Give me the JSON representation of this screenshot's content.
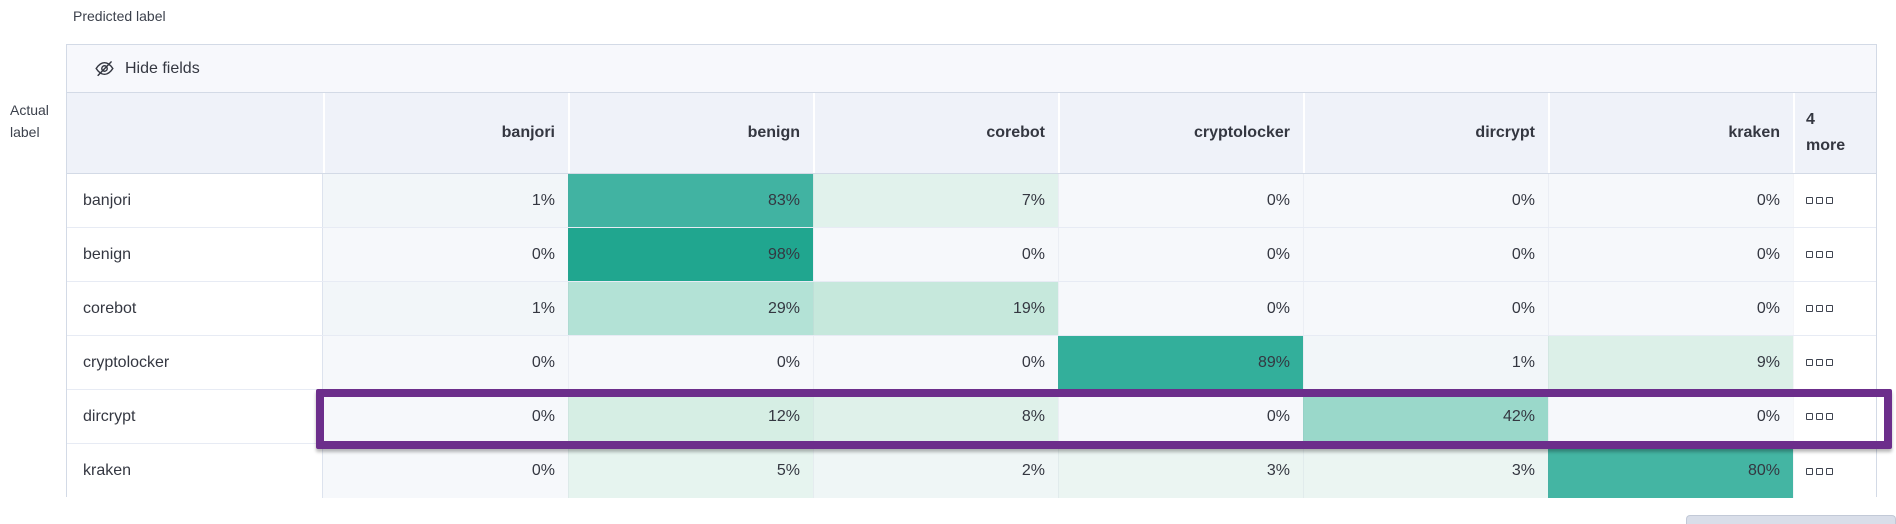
{
  "axis": {
    "predicted": "Predicted label",
    "actual_line1": "Actual",
    "actual_line2": "label"
  },
  "toolbar": {
    "hide_fields_label": "Hide fields",
    "icon": "eye-slash-icon"
  },
  "grid": {
    "columns": [
      "banjori",
      "benign",
      "corebot",
      "cryptolocker",
      "dircrypt",
      "kraken"
    ],
    "more_header_count": "4",
    "more_header_label": "more",
    "more_cell_icon": "boxes-horizontal-icon",
    "rows": [
      {
        "label": "banjori",
        "values": [
          "1%",
          "83%",
          "7%",
          "0%",
          "0%",
          "0%"
        ]
      },
      {
        "label": "benign",
        "values": [
          "0%",
          "98%",
          "0%",
          "0%",
          "0%",
          "0%"
        ]
      },
      {
        "label": "corebot",
        "values": [
          "1%",
          "29%",
          "19%",
          "0%",
          "0%",
          "0%"
        ]
      },
      {
        "label": "cryptolocker",
        "values": [
          "0%",
          "0%",
          "0%",
          "89%",
          "1%",
          "9%"
        ]
      },
      {
        "label": "dircrypt",
        "values": [
          "0%",
          "12%",
          "8%",
          "0%",
          "42%",
          "0%"
        ]
      },
      {
        "label": "kraken",
        "values": [
          "0%",
          "5%",
          "2%",
          "3%",
          "3%",
          "80%"
        ]
      }
    ],
    "highlighted_row": "dircrypt",
    "highlight_color": "#6C2E8B"
  },
  "heatmap_colors": {
    "0%": "#f6f8fb",
    "1%": "#f2f6f9",
    "2%": "#eff6f6",
    "3%": "#ebf5f2",
    "5%": "#e6f4ef",
    "7%": "#e1f2ec",
    "8%": "#dff1ea",
    "9%": "#dcf0e8",
    "12%": "#d6eee4",
    "19%": "#c6e8dc",
    "29%": "#b3e2d6",
    "42%": "#9ad8ca",
    "80%": "#44b5a3",
    "83%": "#41b3a2",
    "89%": "#33af9b",
    "98%": "#20a68f"
  }
}
